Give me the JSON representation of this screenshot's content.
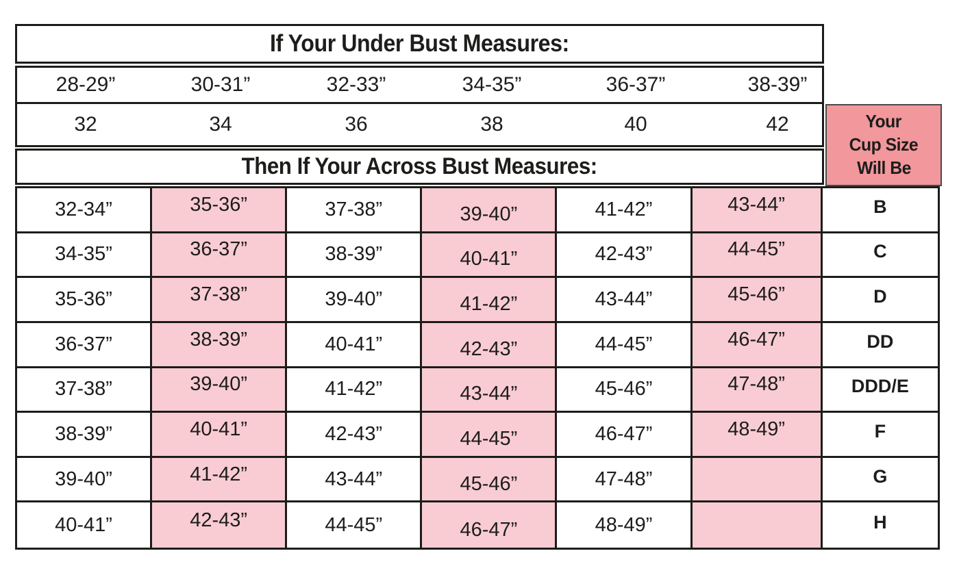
{
  "colors": {
    "highlight_pink": "#f8ccd2",
    "header_pink": "#f2979c",
    "border_black": "#1c1c1a",
    "text_black": "#1d1d1b"
  },
  "chart_data": {
    "type": "table",
    "title": "If Your Under Bust Measures:",
    "subtitle": "Then If Your Across Bust Measures:",
    "underbust_ranges": [
      "28-29”",
      "30-31”",
      "32-33”",
      "34-35”",
      "36-37”",
      "38-39”"
    ],
    "band_sizes": [
      "32",
      "34",
      "36",
      "38",
      "40",
      "42"
    ],
    "cup_header_lines": [
      "Your",
      "Cup Size",
      "Will Be"
    ],
    "highlighted_column_indexes": [
      2,
      4,
      6
    ],
    "rows": [
      {
        "across": [
          "32-34”",
          "35-36”",
          "37-38”",
          "39-40”",
          "41-42”",
          "43-44”"
        ],
        "cup": "B"
      },
      {
        "across": [
          "34-35”",
          "36-37”",
          "38-39”",
          "40-41”",
          "42-43”",
          "44-45”"
        ],
        "cup": "C"
      },
      {
        "across": [
          "35-36”",
          "37-38”",
          "39-40”",
          "41-42”",
          "43-44”",
          "45-46”"
        ],
        "cup": "D"
      },
      {
        "across": [
          "36-37”",
          "38-39”",
          "40-41”",
          "42-43”",
          "44-45”",
          "46-47”"
        ],
        "cup": "DD"
      },
      {
        "across": [
          "37-38”",
          "39-40”",
          "41-42”",
          "43-44”",
          "45-46”",
          "47-48”"
        ],
        "cup": "DDD/E"
      },
      {
        "across": [
          "38-39”",
          "40-41”",
          "42-43”",
          "44-45”",
          "46-47”",
          "48-49”"
        ],
        "cup": "F"
      },
      {
        "across": [
          "39-40”",
          "41-42”",
          "43-44”",
          "45-46”",
          "47-48”",
          ""
        ],
        "cup": "G"
      },
      {
        "across": [
          "40-41”",
          "42-43”",
          "44-45”",
          "46-47”",
          "48-49”",
          ""
        ],
        "cup": "H"
      }
    ]
  }
}
